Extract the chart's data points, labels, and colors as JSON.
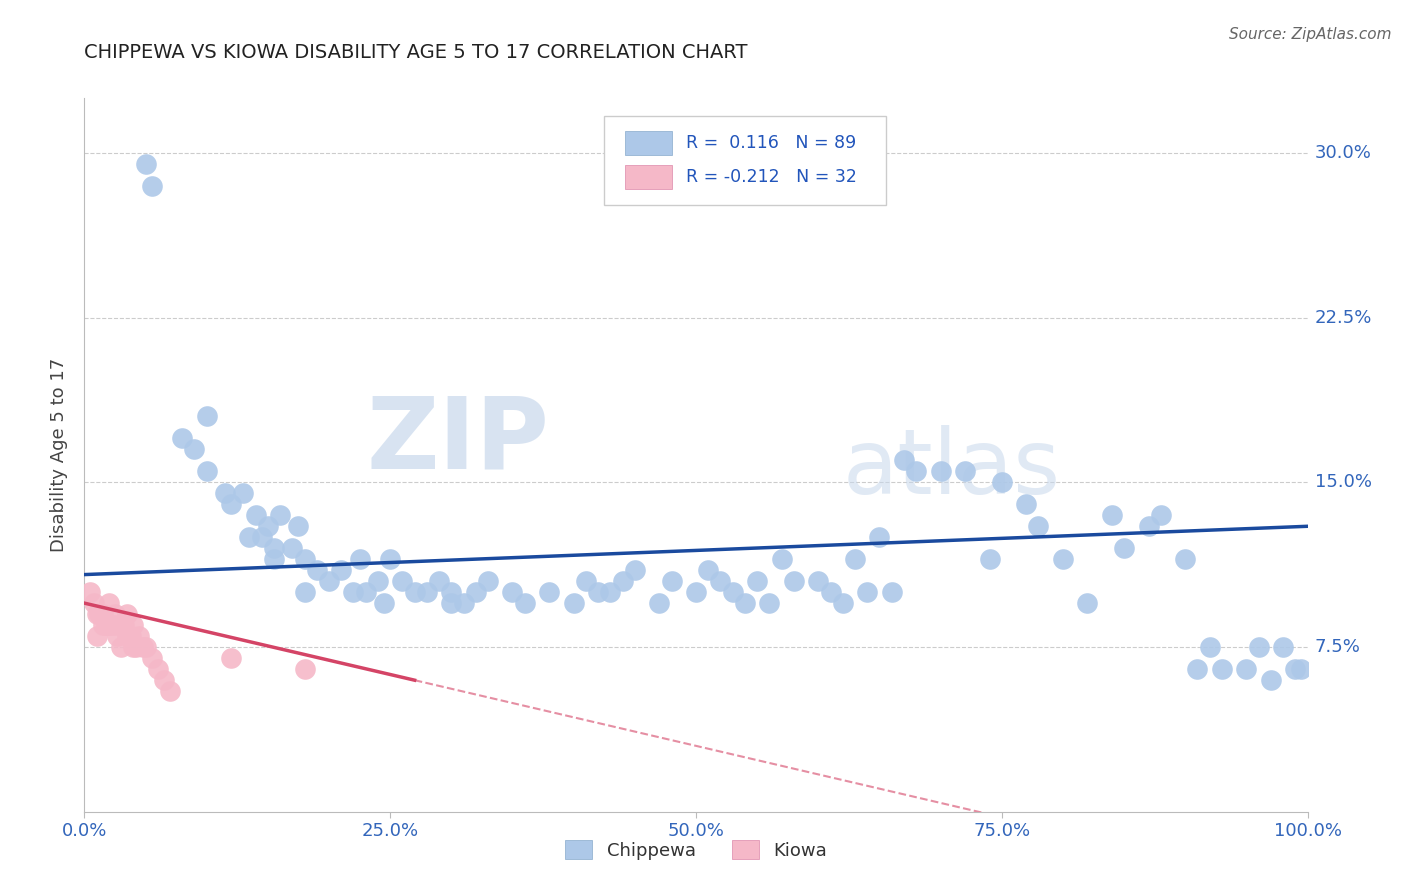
{
  "title": "CHIPPEWA VS KIOWA DISABILITY AGE 5 TO 17 CORRELATION CHART",
  "source": "Source: ZipAtlas.com",
  "ylabel": "Disability Age 5 to 17",
  "xlim": [
    0,
    1.0
  ],
  "ylim": [
    0,
    0.325
  ],
  "yticks": [
    0.075,
    0.15,
    0.225,
    0.3
  ],
  "ytick_labels": [
    "7.5%",
    "15.0%",
    "22.5%",
    "30.0%"
  ],
  "xticks": [
    0.0,
    0.25,
    0.5,
    0.75,
    1.0
  ],
  "xtick_labels": [
    "0.0%",
    "25.0%",
    "50.0%",
    "75.0%",
    "100.0%"
  ],
  "legend_R1": "0.116",
  "legend_N1": "89",
  "legend_R2": "-0.212",
  "legend_N2": "32",
  "chippewa_color": "#adc8e8",
  "kiowa_color": "#f5b8c8",
  "trend_blue": "#1a4a9e",
  "trend_pink": "#d44466",
  "chippewa_x": [
    0.05,
    0.055,
    0.08,
    0.09,
    0.1,
    0.1,
    0.115,
    0.12,
    0.13,
    0.135,
    0.14,
    0.145,
    0.15,
    0.155,
    0.155,
    0.16,
    0.17,
    0.175,
    0.18,
    0.18,
    0.19,
    0.2,
    0.21,
    0.22,
    0.225,
    0.23,
    0.24,
    0.245,
    0.25,
    0.26,
    0.27,
    0.28,
    0.29,
    0.3,
    0.31,
    0.32,
    0.33,
    0.35,
    0.36,
    0.38,
    0.4,
    0.41,
    0.42,
    0.43,
    0.44,
    0.45,
    0.47,
    0.48,
    0.5,
    0.51,
    0.52,
    0.53,
    0.54,
    0.55,
    0.56,
    0.57,
    0.58,
    0.6,
    0.61,
    0.62,
    0.63,
    0.64,
    0.65,
    0.66,
    0.67,
    0.68,
    0.7,
    0.72,
    0.74,
    0.75,
    0.77,
    0.78,
    0.8,
    0.82,
    0.84,
    0.85,
    0.87,
    0.88,
    0.9,
    0.91,
    0.92,
    0.93,
    0.95,
    0.96,
    0.97,
    0.98,
    0.99,
    0.995,
    0.3
  ],
  "chippewa_y": [
    0.295,
    0.285,
    0.17,
    0.165,
    0.155,
    0.18,
    0.145,
    0.14,
    0.145,
    0.125,
    0.135,
    0.125,
    0.13,
    0.12,
    0.115,
    0.135,
    0.12,
    0.13,
    0.1,
    0.115,
    0.11,
    0.105,
    0.11,
    0.1,
    0.115,
    0.1,
    0.105,
    0.095,
    0.115,
    0.105,
    0.1,
    0.1,
    0.105,
    0.1,
    0.095,
    0.1,
    0.105,
    0.1,
    0.095,
    0.1,
    0.095,
    0.105,
    0.1,
    0.1,
    0.105,
    0.11,
    0.095,
    0.105,
    0.1,
    0.11,
    0.105,
    0.1,
    0.095,
    0.105,
    0.095,
    0.115,
    0.105,
    0.105,
    0.1,
    0.095,
    0.115,
    0.1,
    0.125,
    0.1,
    0.16,
    0.155,
    0.155,
    0.155,
    0.115,
    0.15,
    0.14,
    0.13,
    0.115,
    0.095,
    0.135,
    0.12,
    0.13,
    0.135,
    0.115,
    0.065,
    0.075,
    0.065,
    0.065,
    0.075,
    0.06,
    0.075,
    0.065,
    0.065,
    0.095
  ],
  "kiowa_x": [
    0.005,
    0.008,
    0.01,
    0.01,
    0.012,
    0.015,
    0.015,
    0.018,
    0.02,
    0.02,
    0.022,
    0.025,
    0.025,
    0.027,
    0.03,
    0.03,
    0.032,
    0.035,
    0.035,
    0.038,
    0.04,
    0.04,
    0.042,
    0.045,
    0.048,
    0.05,
    0.055,
    0.06,
    0.065,
    0.07,
    0.12,
    0.18
  ],
  "kiowa_y": [
    0.1,
    0.095,
    0.09,
    0.08,
    0.09,
    0.09,
    0.085,
    0.085,
    0.095,
    0.085,
    0.085,
    0.085,
    0.09,
    0.08,
    0.085,
    0.075,
    0.085,
    0.08,
    0.09,
    0.08,
    0.075,
    0.085,
    0.075,
    0.08,
    0.075,
    0.075,
    0.07,
    0.065,
    0.06,
    0.055,
    0.07,
    0.065
  ],
  "background_color": "#ffffff",
  "watermark_zip": "ZIP",
  "watermark_atlas": "atlas",
  "watermark_color": "#d8e4f0"
}
